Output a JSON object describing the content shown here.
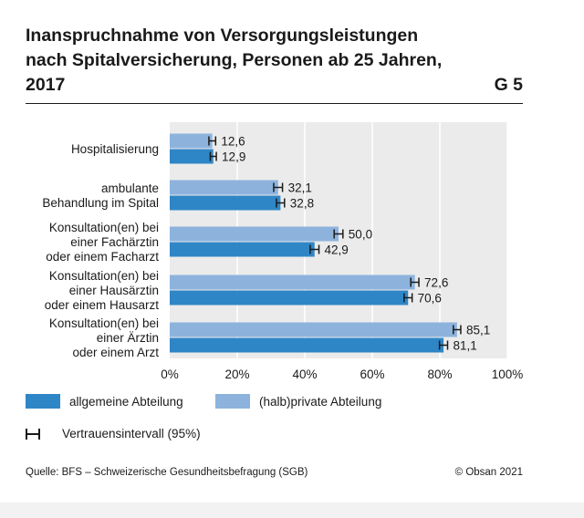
{
  "header": {
    "title_lines": [
      "Inanspruchnahme von Versorgungsleistungen",
      "nach Spitalversicherung, Personen ab 25 Jahren,",
      "2017"
    ],
    "figure_number": "G 5"
  },
  "chart_data": {
    "type": "bar",
    "orientation": "horizontal",
    "title": "Inanspruchnahme von Versorgungsleistungen nach Spitalversicherung, Personen ab 25 Jahren, 2017",
    "categories": [
      [
        "Hospitalisierung"
      ],
      [
        "ambulante",
        "Behandlung im Spital"
      ],
      [
        "Konsultation(en) bei",
        "einer Fachärztin",
        "oder einem Facharzt"
      ],
      [
        "Konsultation(en) bei",
        "einer Hausärztin",
        "oder einem Hausarzt"
      ],
      [
        "Konsultation(en) bei",
        "einer Ärztin",
        "oder einem Arzt"
      ]
    ],
    "series": [
      {
        "name": "(halb)private Abteilung",
        "color": "#8db3dd",
        "values": [
          12.6,
          32.1,
          50.0,
          72.6,
          85.1
        ],
        "labels": [
          "12,6",
          "32,1",
          "50,0",
          "72,6",
          "85,1"
        ],
        "ci_half_width": [
          1.0,
          1.3,
          1.3,
          1.2,
          1.1
        ]
      },
      {
        "name": "allgemeine Abteilung",
        "color": "#2f86c6",
        "values": [
          12.9,
          32.8,
          42.9,
          70.6,
          81.1
        ],
        "labels": [
          "12,9",
          "32,8",
          "42,9",
          "70,6",
          "81,1"
        ],
        "ci_half_width": [
          0.9,
          1.2,
          1.3,
          1.2,
          1.2
        ]
      }
    ],
    "xlim": [
      0,
      100
    ],
    "xticks": [
      0,
      20,
      40,
      60,
      80,
      100
    ],
    "xtick_labels": [
      "0%",
      "20%",
      "40%",
      "60%",
      "80%",
      "100%"
    ],
    "grid": true
  },
  "legend": {
    "general_label": "allgemeine Abteilung",
    "private_label": "(halb)private Abteilung",
    "ci_label": "Vertrauensintervall (95%)",
    "general_color": "#2f86c6",
    "private_color": "#8db3dd"
  },
  "footer": {
    "source": "Quelle: BFS – Schweizerische Gesundheitsbefragung (SGB)",
    "copyright": "© Obsan 2021"
  }
}
